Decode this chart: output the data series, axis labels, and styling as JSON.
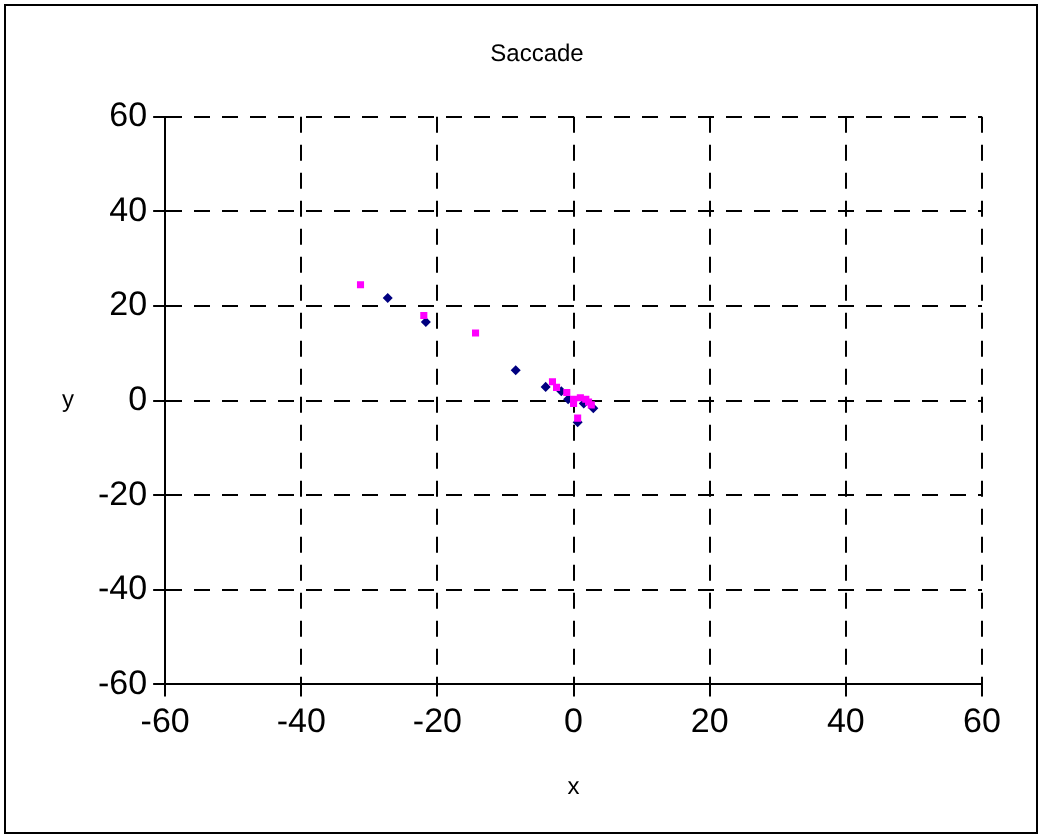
{
  "chart_data": {
    "type": "scatter",
    "title": "Saccade",
    "xlabel": "x",
    "ylabel": "y",
    "xlim": [
      -60,
      60
    ],
    "xticks": [
      -60,
      -40,
      -20,
      0,
      20,
      40,
      60
    ],
    "ylim": [
      -60,
      60
    ],
    "yticks": [
      -60,
      -40,
      -20,
      0,
      20,
      40,
      60
    ],
    "grid": true,
    "legend": false,
    "series": [
      {
        "color": "#000080",
        "marker": "diamond",
        "x": [
          -27.3,
          -21.7,
          -8.5,
          -4.1,
          -1.8,
          -0.8,
          1.5,
          2.9,
          0.6
        ],
        "values": [
          21.7,
          16.6,
          6.4,
          2.9,
          2.0,
          0.3,
          -0.6,
          -1.6,
          -4.6
        ]
      },
      {
        "color": "#ff00ff",
        "marker": "square",
        "x": [
          -31.3,
          -22.0,
          -14.4,
          -3.1,
          -2.5,
          -1.0,
          0,
          1.0,
          1.8,
          2.2,
          0,
          2.6,
          0.6
        ],
        "values": [
          24.5,
          18.0,
          14.3,
          4.0,
          2.8,
          1.7,
          0.3,
          0.6,
          0.3,
          -0.3,
          -0.6,
          -0.9,
          -3.7
        ]
      }
    ]
  }
}
